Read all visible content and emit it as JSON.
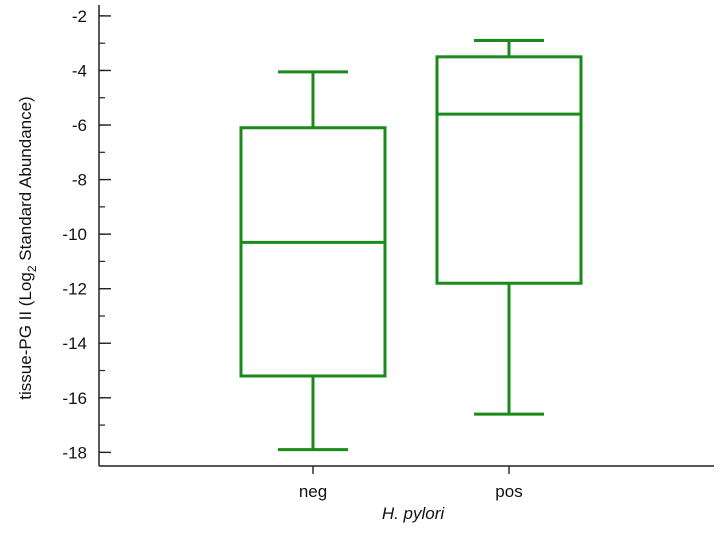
{
  "chart_data": {
    "type": "box",
    "xlabel": "H. pylori",
    "ylabel": {
      "prefix": "tissue-PG II (Log",
      "subscript": "2",
      "suffix": " Standard Abundance)"
    },
    "ylim": [
      -18.5,
      -1.6
    ],
    "yticks": [
      -2,
      -4,
      -6,
      -8,
      -10,
      -12,
      -14,
      -16,
      -18
    ],
    "minor_step": 1,
    "grid": false,
    "legend": "none",
    "color": "#1a8a1a",
    "categories": [
      "neg",
      "pos"
    ],
    "boxes": [
      {
        "category": "neg",
        "whisker_high": -4.05,
        "q3": -6.1,
        "median": -10.3,
        "q1": -15.2,
        "whisker_low": -17.9
      },
      {
        "category": "pos",
        "whisker_high": -2.9,
        "q3": -3.5,
        "median": -5.6,
        "q1": -11.8,
        "whisker_low": -16.6
      }
    ]
  }
}
